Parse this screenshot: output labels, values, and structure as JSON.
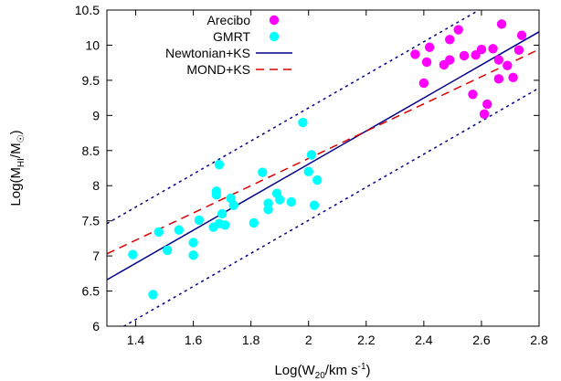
{
  "chart_data": {
    "type": "scatter",
    "xlabel": "Log(W",
    "xlabel_sub": "20",
    "xlabel_rest": "/km s",
    "xlabel_sup": "-1",
    "xlabel_end": ")",
    "ylabel": "Log(M",
    "ylabel_sub": "HI",
    "ylabel_mid": "/M",
    "ylabel_sub2": "☉",
    "ylabel_end": ")",
    "xlim": [
      1.3,
      2.8
    ],
    "ylim": [
      6,
      10.5
    ],
    "xticks": [
      1.4,
      1.6,
      1.8,
      2.0,
      2.2,
      2.4,
      2.6,
      2.8
    ],
    "xtick_labels": [
      "1.4",
      "1.6",
      "1.8",
      "2",
      "2.2",
      "2.4",
      "2.6",
      "2.8"
    ],
    "yticks": [
      6,
      6.5,
      7,
      7.5,
      8,
      8.5,
      9,
      9.5,
      10,
      10.5
    ],
    "ytick_labels": [
      "6",
      "6.5",
      "7",
      "7.5",
      "8",
      "8.5",
      "9",
      "9.5",
      "10",
      "10.5"
    ],
    "legend_position": "top-left",
    "series": [
      {
        "name": "Arecibo",
        "kind": "points",
        "color": "#ff00ff",
        "points": [
          [
            2.37,
            9.87
          ],
          [
            2.4,
            9.46
          ],
          [
            2.41,
            9.76
          ],
          [
            2.42,
            9.97
          ],
          [
            2.47,
            9.72
          ],
          [
            2.49,
            10.08
          ],
          [
            2.49,
            9.79
          ],
          [
            2.52,
            10.22
          ],
          [
            2.54,
            9.85
          ],
          [
            2.57,
            9.3
          ],
          [
            2.58,
            9.86
          ],
          [
            2.6,
            9.94
          ],
          [
            2.61,
            9.02
          ],
          [
            2.62,
            9.16
          ],
          [
            2.64,
            9.95
          ],
          [
            2.66,
            9.79
          ],
          [
            2.66,
            9.52
          ],
          [
            2.67,
            10.3
          ],
          [
            2.69,
            9.71
          ],
          [
            2.71,
            9.54
          ],
          [
            2.73,
            9.93
          ],
          [
            2.74,
            10.14
          ]
        ]
      },
      {
        "name": "GMRT",
        "kind": "points",
        "color": "#00ffff",
        "points": [
          [
            1.39,
            7.02
          ],
          [
            1.46,
            6.45
          ],
          [
            1.48,
            7.34
          ],
          [
            1.51,
            7.08
          ],
          [
            1.55,
            7.37
          ],
          [
            1.6,
            7.01
          ],
          [
            1.6,
            7.19
          ],
          [
            1.62,
            7.51
          ],
          [
            1.67,
            7.41
          ],
          [
            1.68,
            7.92
          ],
          [
            1.68,
            7.87
          ],
          [
            1.69,
            8.3
          ],
          [
            1.69,
            7.46
          ],
          [
            1.7,
            7.6
          ],
          [
            1.71,
            7.44
          ],
          [
            1.73,
            7.82
          ],
          [
            1.74,
            7.72
          ],
          [
            1.81,
            7.47
          ],
          [
            1.84,
            8.19
          ],
          [
            1.86,
            7.75
          ],
          [
            1.86,
            7.66
          ],
          [
            1.89,
            7.89
          ],
          [
            1.9,
            7.8
          ],
          [
            1.94,
            7.77
          ],
          [
            1.98,
            8.9
          ],
          [
            2.0,
            8.2
          ],
          [
            2.01,
            8.44
          ],
          [
            2.02,
            7.72
          ],
          [
            2.03,
            8.08
          ]
        ]
      },
      {
        "name": "Newtonian+KS",
        "kind": "line",
        "color": "#00008b",
        "dash": "none",
        "points": [
          [
            1.3,
            6.66
          ],
          [
            2.8,
            10.19
          ]
        ]
      },
      {
        "name": "MOND+KS",
        "kind": "line",
        "color": "#dd0000",
        "dash": "9,6",
        "points": [
          [
            1.3,
            7.03
          ],
          [
            2.8,
            9.94
          ]
        ]
      },
      {
        "name": "",
        "kind": "line",
        "color": "#00008b",
        "dash": "3,4",
        "points": [
          [
            1.3,
            7.46
          ],
          [
            2.8,
            10.99
          ]
        ]
      },
      {
        "name": "",
        "kind": "line",
        "color": "#00008b",
        "dash": "3,4",
        "points": [
          [
            1.3,
            5.86
          ],
          [
            2.8,
            9.39
          ]
        ]
      }
    ]
  }
}
